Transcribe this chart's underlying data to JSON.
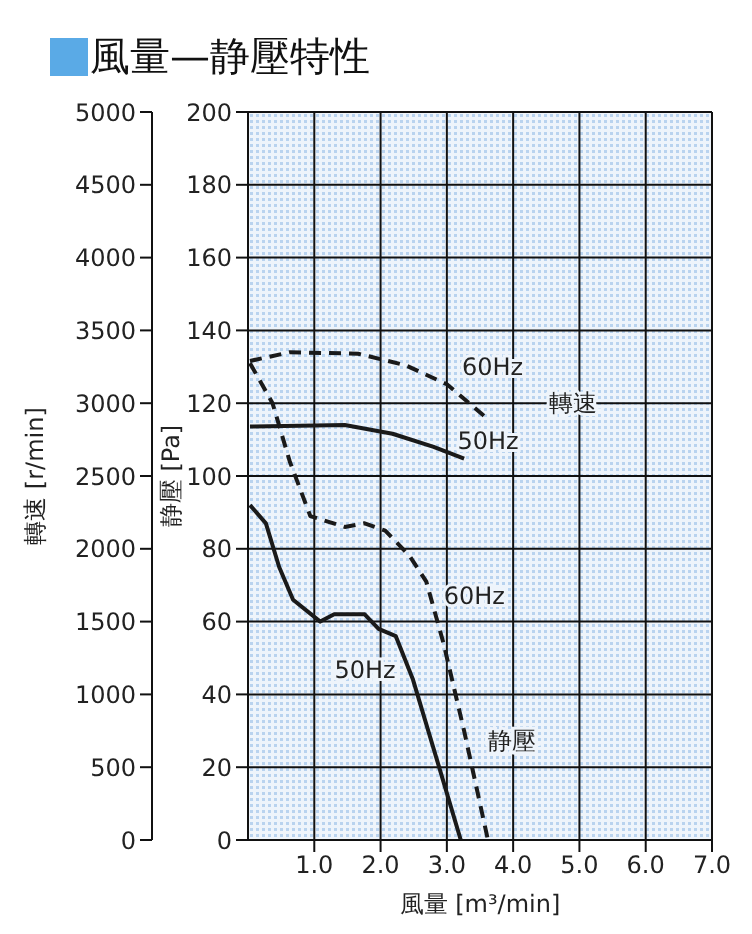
{
  "chart_data": {
    "type": "line",
    "title": "風量—静壓特性",
    "xlabel": "風量 [m³/min]",
    "ylabel": "静壓 [Pa]",
    "y2label": "轉速 [r/min]",
    "xlim": [
      0,
      7
    ],
    "xticks": [
      {
        "value": 1,
        "label": "1.0"
      },
      {
        "value": 2,
        "label": "2.0"
      },
      {
        "value": 3,
        "label": "3.0"
      },
      {
        "value": 4,
        "label": "4.0"
      },
      {
        "value": 5,
        "label": "5.0"
      },
      {
        "value": 6,
        "label": "6.0"
      },
      {
        "value": 7,
        "label": "7.0"
      }
    ],
    "ylim": [
      0,
      200
    ],
    "yticks": [
      0,
      20,
      40,
      60,
      80,
      100,
      120,
      140,
      160,
      180,
      200
    ],
    "y2lim": [
      0,
      5000
    ],
    "y2ticks": [
      0,
      500,
      1000,
      1500,
      2000,
      2500,
      3000,
      3500,
      4000,
      4500,
      5000
    ],
    "grid": true,
    "marker": "none",
    "series": [
      {
        "type": "line",
        "name": "60Hz",
        "axis": "y2",
        "color": "#1a1a1a",
        "line_style": "dashed",
        "x": [
          0.03,
          0.63,
          1.66,
          2.38,
          3.0,
          3.57
        ],
        "values": [
          3290,
          3350,
          3340,
          3260,
          3130,
          2910
        ]
      },
      {
        "type": "line",
        "name": "50Hz",
        "axis": "y2",
        "color": "#1a1a1a",
        "line_style": "solid",
        "x": [
          0.03,
          1.46,
          2.18,
          2.8,
          3.26
        ],
        "values": [
          2840,
          2850,
          2790,
          2700,
          2620
        ]
      },
      {
        "type": "line",
        "name": "60Hz",
        "axis": "y",
        "color": "#1a1a1a",
        "line_style": "dashed",
        "x": [
          0.03,
          0.37,
          0.63,
          0.94,
          1.46,
          1.76,
          2.07,
          2.44,
          2.69,
          2.95,
          3.26,
          3.62
        ],
        "values": [
          131,
          120,
          104,
          89,
          86,
          87,
          85,
          78,
          71,
          54,
          30,
          0
        ]
      },
      {
        "type": "line",
        "name": "50Hz",
        "axis": "y",
        "color": "#1a1a1a",
        "line_style": "solid",
        "x": [
          0.03,
          0.27,
          0.47,
          0.68,
          1.09,
          1.3,
          1.76,
          1.97,
          2.23,
          2.49,
          2.9,
          3.21
        ],
        "values": [
          92,
          87,
          75,
          66,
          60,
          62,
          62,
          58,
          56,
          44,
          19,
          0
        ]
      }
    ],
    "annotations": [
      "轉速",
      "静壓"
    ]
  }
}
